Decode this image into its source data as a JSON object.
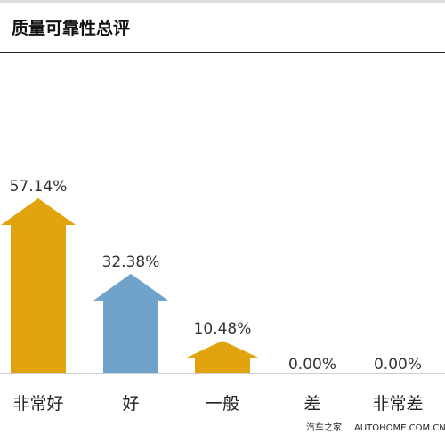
{
  "chart_data": {
    "type": "bar",
    "title": "质量可靠性总评",
    "categories": [
      "非常好",
      "好",
      "一般",
      "差",
      "非常差"
    ],
    "values": [
      57.14,
      32.38,
      10.48,
      0.0,
      0.0
    ],
    "value_labels": [
      "57.14%",
      "32.38%",
      "10.48%",
      "0.00%",
      "0.00%"
    ],
    "unit": "%",
    "ylim": [
      0,
      57.14
    ],
    "grid": false,
    "colors": [
      "#e2a40e",
      "#6fa3cb",
      "#e2a40e",
      "#e2a40e",
      "#e2a40e"
    ]
  },
  "watermark": {
    "cn": "汽车之家",
    "en": "AUTOHOME.COM.CN"
  }
}
